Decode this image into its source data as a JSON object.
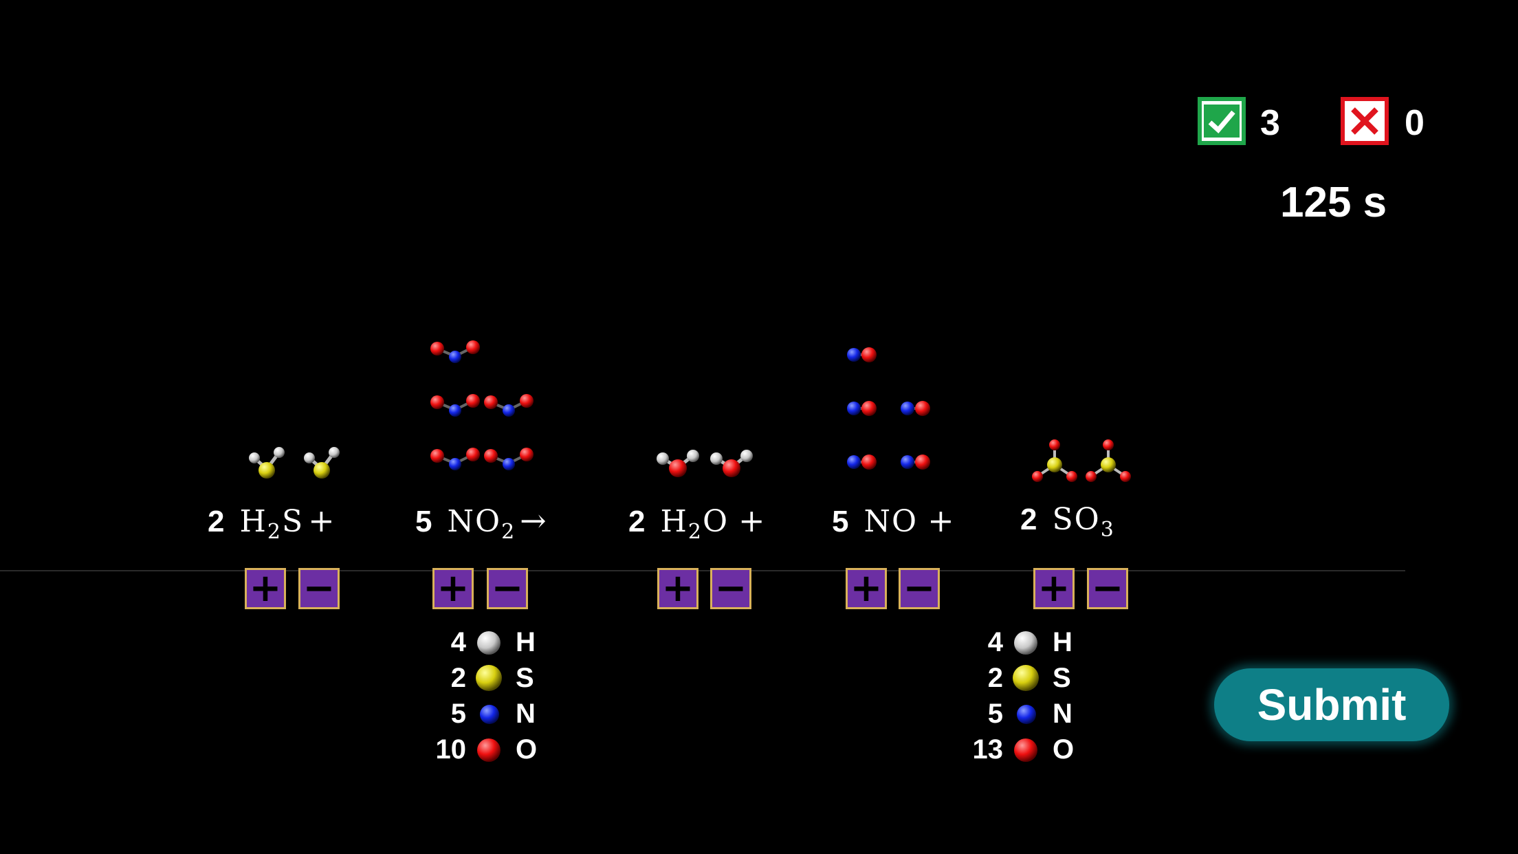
{
  "score": {
    "correct": "3",
    "wrong": "0",
    "correct_icon": "check-icon",
    "wrong_icon": "x-icon",
    "correct_color": "#1fa64a",
    "wrong_color": "#e0141e"
  },
  "timer": "125 s",
  "equation": {
    "terms": [
      {
        "coef": "2",
        "formula": [
          "H",
          "2",
          "S"
        ],
        "op": "+",
        "molecule": "hydrogen-sulfide"
      },
      {
        "coef": "5",
        "formula": [
          "NO",
          "2",
          ""
        ],
        "op": "→",
        "molecule": "nitrogen-dioxide"
      },
      {
        "coef": "2",
        "formula": [
          "H",
          "2",
          "O"
        ],
        "op": " +",
        "molecule": "water"
      },
      {
        "coef": "5",
        "formula": [
          "NO",
          "",
          ""
        ],
        "op": " +",
        "molecule": "nitric-oxide"
      },
      {
        "coef": "2",
        "formula": [
          "SO",
          "3",
          ""
        ],
        "op": "",
        "molecule": "sulfur-trioxide"
      }
    ],
    "button_plus": "+",
    "button_minus": "−"
  },
  "tallies": {
    "reactants": [
      {
        "count": "4",
        "symbol": "H",
        "color": "#e6e6e6"
      },
      {
        "count": "2",
        "symbol": "S",
        "color": "#e8e020"
      },
      {
        "count": "5",
        "symbol": "N",
        "color": "#1b2cff"
      },
      {
        "count": "10",
        "symbol": "O",
        "color": "#ff1a1a"
      }
    ],
    "products": [
      {
        "count": "4",
        "symbol": "H",
        "color": "#e6e6e6"
      },
      {
        "count": "2",
        "symbol": "S",
        "color": "#e8e020"
      },
      {
        "count": "5",
        "symbol": "N",
        "color": "#1b2cff"
      },
      {
        "count": "13",
        "symbol": "O",
        "color": "#ff1a1a"
      }
    ]
  },
  "submit_label": "Submit"
}
